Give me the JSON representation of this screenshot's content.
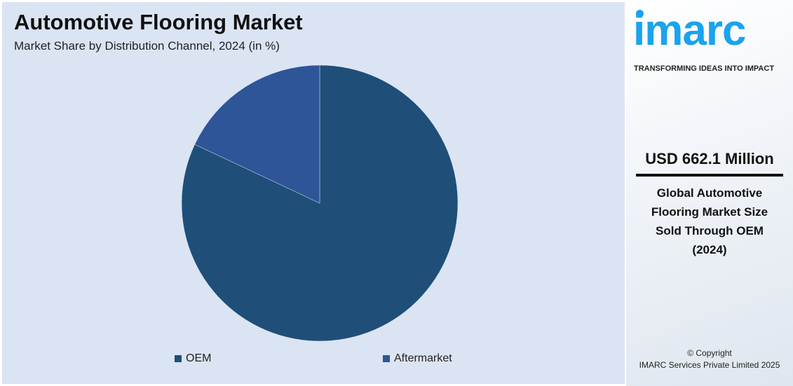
{
  "header": {
    "title": "Automotive Flooring Market",
    "subtitle": "Market Share by Distribution Channel, 2024 (in %)"
  },
  "chart_data": {
    "type": "pie",
    "title": "Automotive Flooring Market",
    "subtitle": "Market Share by Distribution Channel, 2024 (in %)",
    "categories": [
      "OEM",
      "Aftermarket"
    ],
    "values": [
      82,
      18
    ],
    "colors": [
      "#1f4e79",
      "#2e5597"
    ],
    "legend": "bottom",
    "start": "12 o'clock, clockwise"
  },
  "sidebar": {
    "logo": "imarc",
    "tagline": "TRANSFORMING IDEAS INTO IMPACT",
    "value": "USD 662.1 Million",
    "description": [
      "Global Automotive",
      "Flooring Market Size",
      "Sold Through OEM",
      "(2024)"
    ],
    "copyright": "© Copyright",
    "company": "IMARC Services Private Limited 2025"
  }
}
